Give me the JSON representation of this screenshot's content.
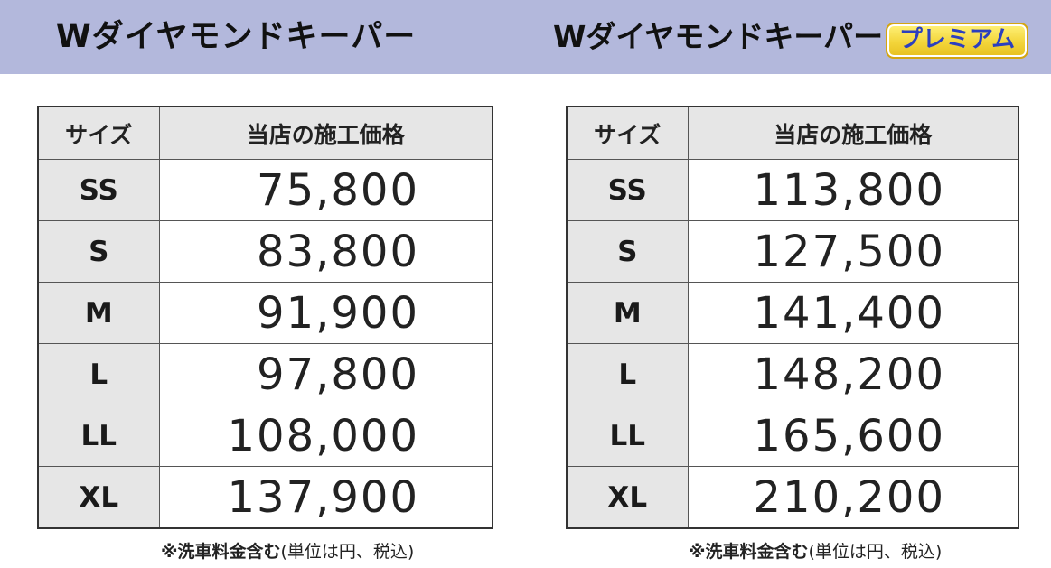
{
  "left_section": {
    "title": "Wダイヤモンドキーパー",
    "table": {
      "headers": {
        "size": "サイズ",
        "price": "当店の施工価格"
      },
      "rows": [
        {
          "size": "SS",
          "price": "75,800"
        },
        {
          "size": "S",
          "price": "83,800"
        },
        {
          "size": "M",
          "price": "91,900"
        },
        {
          "size": "L",
          "price": "97,800"
        },
        {
          "size": "LL",
          "price": "108,000"
        },
        {
          "size": "XL",
          "price": "137,900"
        }
      ]
    },
    "note_bold": "※洗車料金含む",
    "note_rest": "(単位は円、税込)"
  },
  "right_section": {
    "title": "Wダイヤモンドキーパー",
    "badge": "プレミアム",
    "table": {
      "headers": {
        "size": "サイズ",
        "price": "当店の施工価格"
      },
      "rows": [
        {
          "size": "SS",
          "price": "113,800"
        },
        {
          "size": "S",
          "price": "127,500"
        },
        {
          "size": "M",
          "price": "141,400"
        },
        {
          "size": "L",
          "price": "148,200"
        },
        {
          "size": "LL",
          "price": "165,600"
        },
        {
          "size": "XL",
          "price": "210,200"
        }
      ]
    },
    "note_bold": "※洗車料金含む",
    "note_rest": "(単位は円、税込)"
  },
  "colors": {
    "header_band": "#b3b8dc",
    "cell_gray": "#e6e6e6",
    "badge_yellow": "#f3d53a",
    "badge_text": "#2b3fbf"
  }
}
